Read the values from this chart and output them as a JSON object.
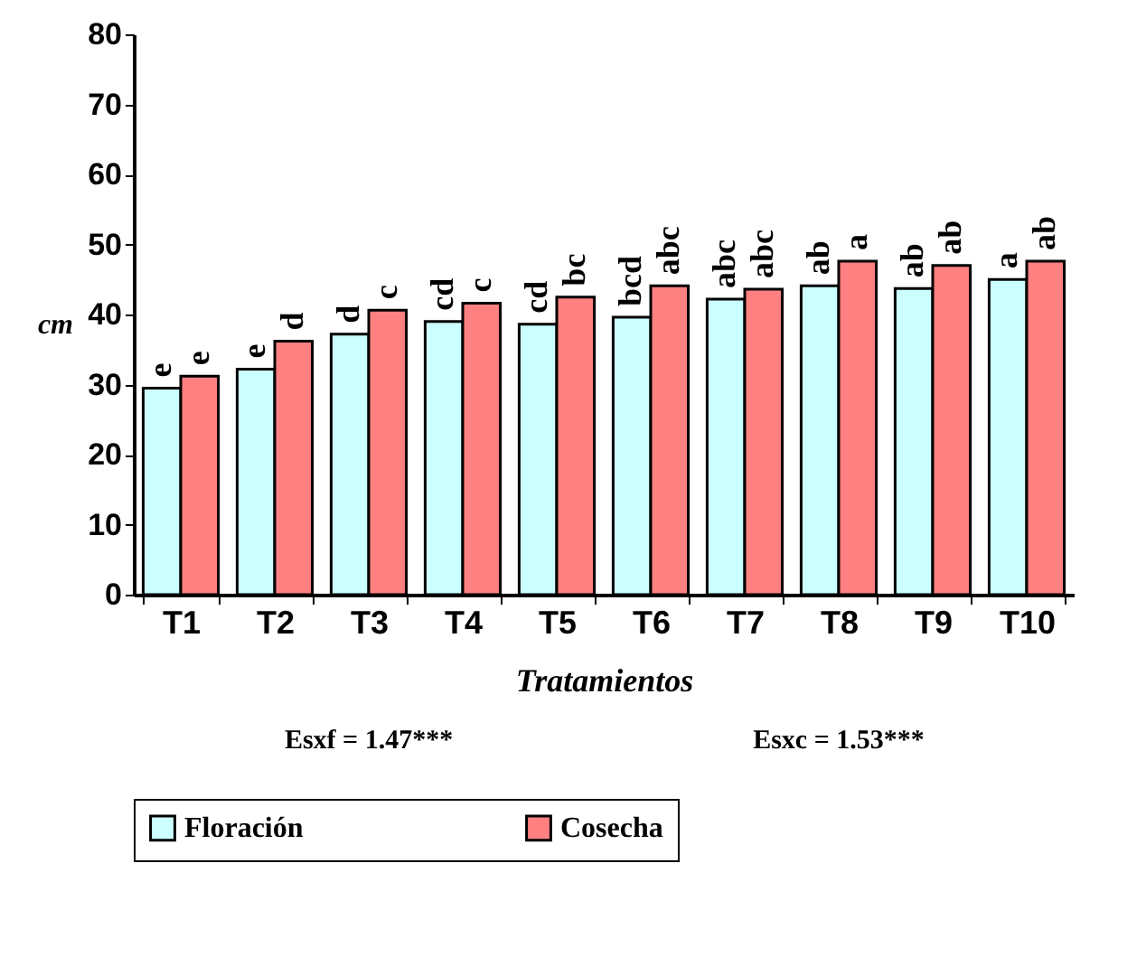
{
  "chart_data": {
    "type": "bar",
    "xlabel": "Tratamientos",
    "ylabel": "cm",
    "categories": [
      "T1",
      "T2",
      "T3",
      "T4",
      "T5",
      "T6",
      "T7",
      "T8",
      "T9",
      "T10"
    ],
    "series": [
      {
        "name": "Floración",
        "color": "#ccffff",
        "values": [
          29.5,
          32.2,
          37.2,
          39.0,
          38.6,
          39.6,
          42.2,
          44.1,
          43.7,
          45.0
        ],
        "value_labels": [
          "e",
          "e",
          "d",
          "cd",
          "cd",
          "bcd",
          "abc",
          "ab",
          "ab",
          "a"
        ]
      },
      {
        "name": "Cosecha",
        "color": "#ff8080",
        "values": [
          31.2,
          36.2,
          40.6,
          41.6,
          42.5,
          44.1,
          43.6,
          47.6,
          47.0,
          47.6
        ],
        "value_labels": [
          "e",
          "d",
          "c",
          "c",
          "bc",
          "abc",
          "abc",
          "a",
          "ab",
          "ab"
        ]
      }
    ],
    "ylim": [
      0,
      80
    ],
    "yticks": [
      0,
      10,
      20,
      30,
      40,
      50,
      60,
      70,
      80
    ],
    "grid": false,
    "legend": "bottom",
    "annotations": [
      "Esxf = 1.47***",
      "Esxc = 1.53***"
    ]
  }
}
